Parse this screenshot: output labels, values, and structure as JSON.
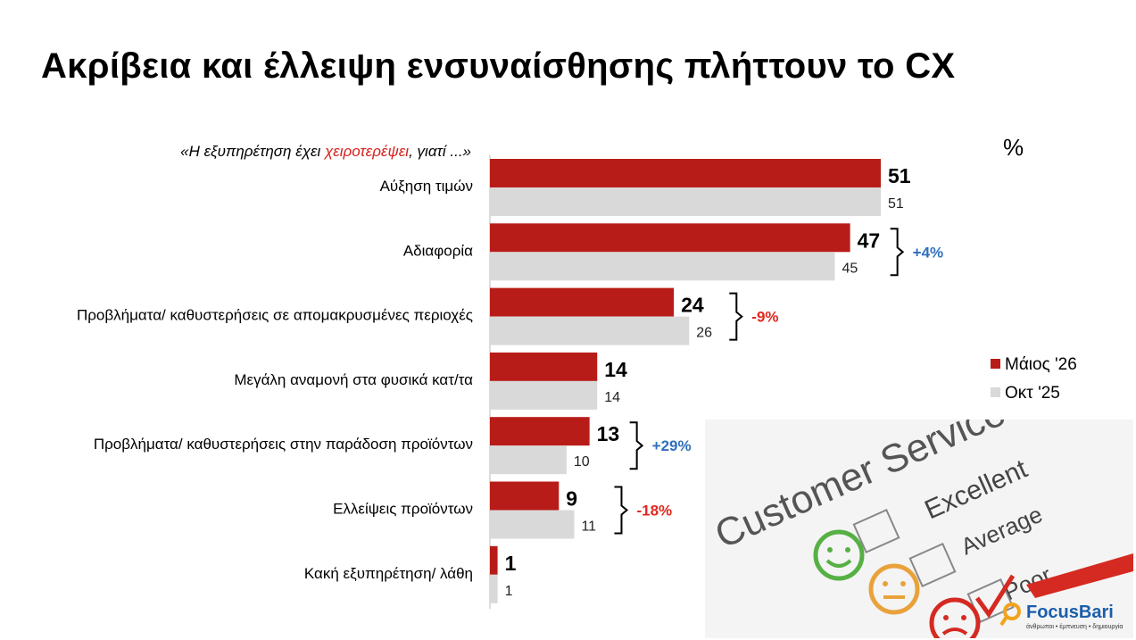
{
  "title": "Ακρίβεια και έλλειψη ενσυναίσθησης πλήττουν το CX",
  "question": {
    "prefix": "«Η εξυπηρέτηση έχει ",
    "highlight": "χειροτερέψει",
    "suffix": ", γιατί ...»"
  },
  "unit": "%",
  "colors": {
    "may": "#b81c18",
    "oct": "#d9d9d9",
    "positive": "#2f6fbd",
    "negative": "#e0281f"
  },
  "illustration": {
    "heading": "Customer Service",
    "options": [
      "Excellent",
      "Average",
      "Poor"
    ]
  },
  "logo": {
    "name": "FocusBari",
    "tagline": "άνθρωποι • έμπνευση • δημιουργία"
  },
  "chart_data": {
    "type": "bar",
    "orientation": "horizontal",
    "categories": [
      "Αύξηση τιμών",
      "Αδιαφορία",
      "Προβλήματα/ καθυστερήσεις σε απομακρυσμένες περιοχές",
      "Μεγάλη αναμονή στα φυσικά κατ/τα",
      "Προβλήματα/ καθυστερήσεις στην παράδοση προϊόντων",
      "Ελλείψεις προϊόντων",
      "Κακή εξυπηρέτηση/ λάθη"
    ],
    "series": [
      {
        "name": "Μάιος '26",
        "values": [
          51,
          47,
          24,
          14,
          13,
          9,
          1
        ]
      },
      {
        "name": "Οκτ '25",
        "values": [
          51,
          45,
          26,
          14,
          10,
          11,
          1
        ]
      }
    ],
    "changes": [
      "",
      "+4%",
      "-9%",
      "",
      "+29%",
      "-18%",
      ""
    ],
    "xlim": [
      0,
      51
    ],
    "legend_position": "right",
    "grid": false
  }
}
